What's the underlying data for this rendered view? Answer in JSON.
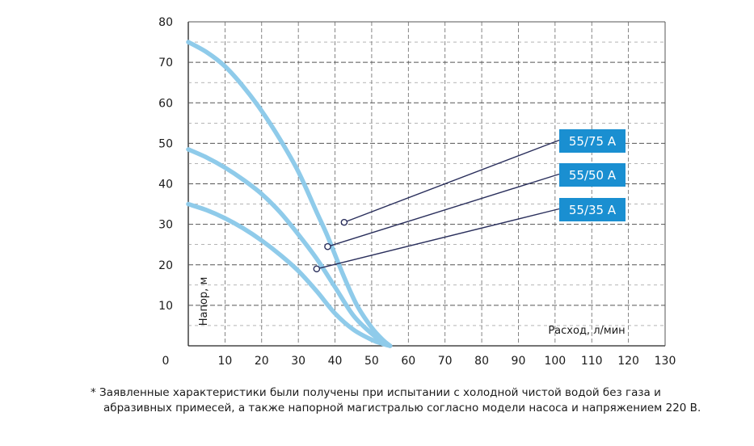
{
  "chart_data": {
    "type": "line",
    "xlabel": "Расход, л/мин",
    "ylabel": "Напор, м",
    "xlim": [
      0,
      130
    ],
    "ylim": [
      0,
      80
    ],
    "x_ticks": [
      "0",
      "10",
      "20",
      "30",
      "40",
      "50",
      "60",
      "70",
      "80",
      "90",
      "100",
      "110",
      "120",
      "130"
    ],
    "y_ticks": [
      "10",
      "20",
      "30",
      "40",
      "50",
      "60",
      "70",
      "80"
    ],
    "grid": true,
    "series": [
      {
        "name": "55/75 A",
        "color": "#8fcbea",
        "points": [
          [
            0,
            75
          ],
          [
            5,
            72.5
          ],
          [
            10,
            69
          ],
          [
            15,
            64
          ],
          [
            20,
            58
          ],
          [
            25,
            51
          ],
          [
            30,
            43
          ],
          [
            35,
            33
          ],
          [
            38,
            27
          ],
          [
            42,
            18
          ],
          [
            46,
            10
          ],
          [
            50,
            4.5
          ],
          [
            53,
            1.5
          ],
          [
            55,
            0
          ]
        ],
        "marker": [
          42.5,
          30.5
        ]
      },
      {
        "name": "55/50 A",
        "color": "#8fcbea",
        "points": [
          [
            0,
            48.5
          ],
          [
            5,
            46.5
          ],
          [
            10,
            44
          ],
          [
            15,
            41
          ],
          [
            20,
            37.5
          ],
          [
            25,
            33
          ],
          [
            30,
            27.5
          ],
          [
            35,
            21.5
          ],
          [
            40,
            14.5
          ],
          [
            45,
            7.5
          ],
          [
            50,
            3
          ],
          [
            53,
            1
          ],
          [
            55,
            0
          ]
        ],
        "marker": [
          38,
          24.5
        ]
      },
      {
        "name": "55/35 A",
        "color": "#8fcbea",
        "points": [
          [
            0,
            35
          ],
          [
            5,
            33.5
          ],
          [
            10,
            31.5
          ],
          [
            15,
            29
          ],
          [
            20,
            26
          ],
          [
            25,
            22.5
          ],
          [
            30,
            18.5
          ],
          [
            35,
            13.5
          ],
          [
            40,
            8
          ],
          [
            45,
            4
          ],
          [
            50,
            1.5
          ],
          [
            53,
            0.5
          ],
          [
            55,
            0
          ]
        ],
        "marker": [
          35,
          19
        ]
      }
    ]
  },
  "badge_color": "#1a8fd1",
  "footnote": {
    "line1": "* Заявленные характеристики были получены при испытании с холодной чистой водой без газа и",
    "line2": "абразивных примесей, а также напорной магистралью согласно модели насоса и напряжением  220 В."
  }
}
